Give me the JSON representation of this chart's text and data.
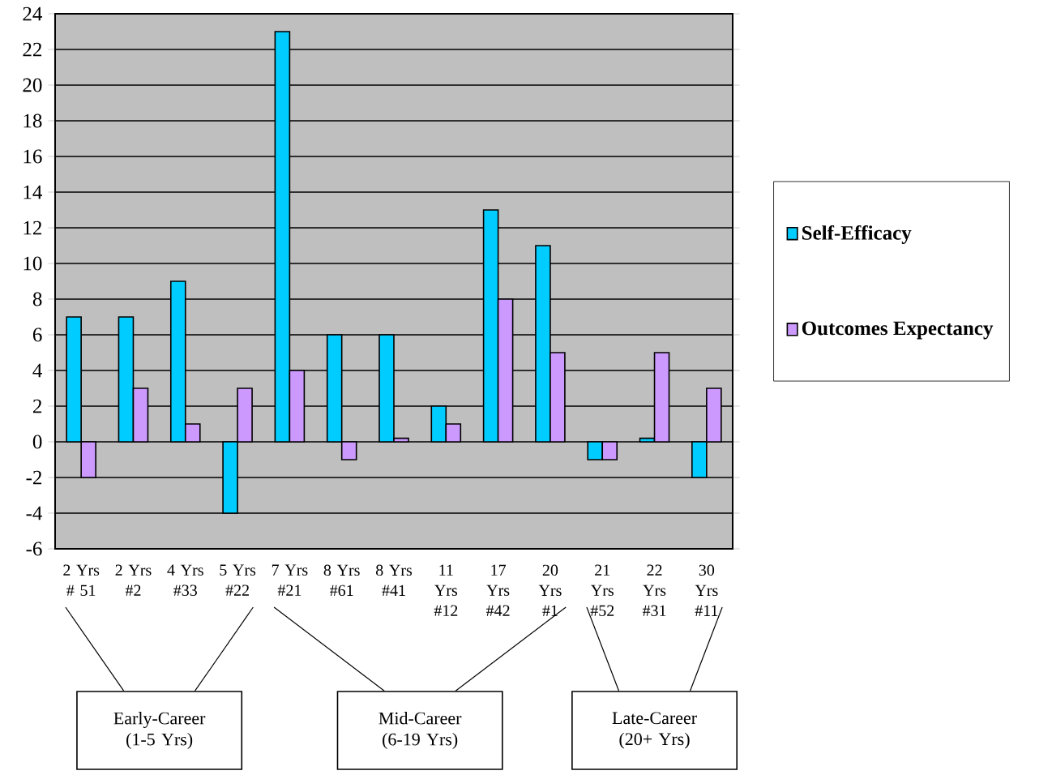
{
  "chart_data": {
    "type": "bar",
    "categories": [
      "2 Yrs # 51",
      "2 Yrs #2",
      "4 Yrs #33",
      "5 Yrs #22",
      "7 Yrs #21",
      "8 Yrs #61",
      "8 Yrs #41",
      "11 Yrs #12",
      "17 Yrs #42",
      "20 Yrs #1",
      "21 Yrs #52",
      "22 Yrs #31",
      "30 Yrs #11"
    ],
    "series": [
      {
        "name": "Self-Efficacy",
        "color": "#00ccff",
        "values": [
          7,
          7,
          9,
          -4,
          23,
          6,
          6,
          2,
          13,
          11,
          -1,
          0.2,
          -2
        ]
      },
      {
        "name": "Outcomes Expectancy",
        "color": "#cc99ff",
        "values": [
          -2,
          3,
          1,
          3,
          4,
          -1,
          0.2,
          1,
          8,
          5,
          -1,
          5,
          3
        ]
      }
    ],
    "ylim": [
      -6,
      24
    ],
    "yticks": [
      -6,
      -4,
      -2,
      0,
      2,
      4,
      6,
      8,
      10,
      12,
      14,
      16,
      18,
      20,
      22,
      24
    ],
    "grid": "y",
    "legend": "right",
    "annotations": [
      "Early-Career (1-5 Yrs)",
      "Mid-Career (6-19 Yrs)",
      "Late-Career (20+ Yrs)"
    ]
  }
}
